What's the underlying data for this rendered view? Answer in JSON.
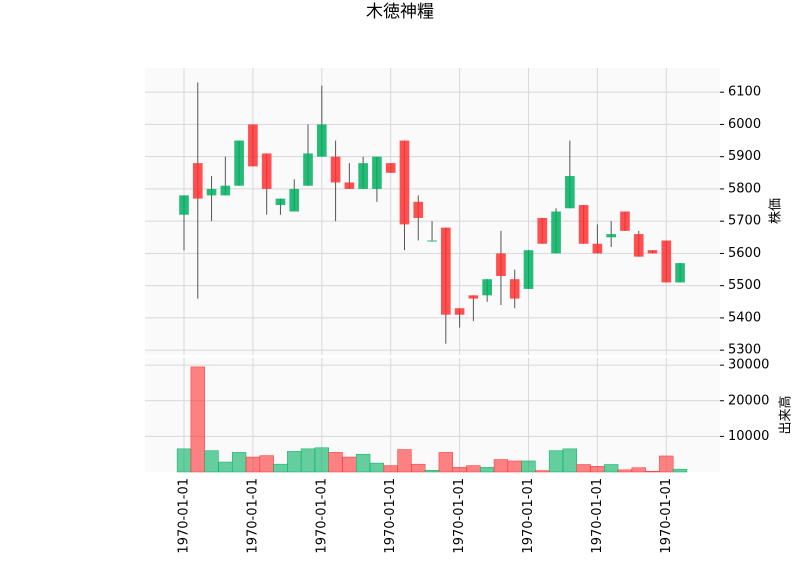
{
  "chart_data": {
    "type": "candlestick",
    "title": "木徳神糧",
    "x": [
      "1970-01-01",
      null,
      null,
      null,
      null,
      "1970-01-01",
      null,
      null,
      null,
      null,
      "1970-01-01",
      null,
      null,
      null,
      null,
      "1970-01-01",
      null,
      null,
      null,
      null,
      "1970-01-01",
      null,
      null,
      null,
      null,
      "1970-01-01",
      null,
      null,
      null,
      null,
      "1970-01-01",
      null,
      null,
      null,
      null,
      "1970-01-01",
      null
    ],
    "open": [
      5720,
      5880,
      5780,
      5780,
      5810,
      6000,
      5910,
      5750,
      5730,
      5810,
      5900,
      5900,
      5820,
      5800,
      5800,
      5880,
      5950,
      5760,
      5640,
      5680,
      5430,
      5470,
      5470,
      5600,
      5520,
      5490,
      5710,
      5600,
      5740,
      5750,
      5630,
      5650,
      5730,
      5660,
      5610,
      5640,
      5510
    ],
    "high": [
      5780,
      6130,
      5840,
      5900,
      5950,
      6000,
      5910,
      5770,
      5830,
      6000,
      6120,
      5950,
      5880,
      5900,
      5900,
      5880,
      5950,
      5780,
      5700,
      5680,
      5430,
      5470,
      5520,
      5670,
      5550,
      5610,
      5710,
      5740,
      5950,
      5750,
      5690,
      5700,
      5730,
      5670,
      5610,
      5640,
      5570
    ],
    "low": [
      5610,
      5460,
      5700,
      5780,
      5810,
      5870,
      5720,
      5720,
      5730,
      5810,
      5900,
      5700,
      5800,
      5800,
      5760,
      5850,
      5610,
      5640,
      5640,
      5320,
      5370,
      5390,
      5450,
      5440,
      5430,
      5490,
      5630,
      5600,
      5740,
      5630,
      5600,
      5620,
      5670,
      5590,
      5600,
      5510,
      5510
    ],
    "close": [
      5780,
      5770,
      5800,
      5810,
      5950,
      5870,
      5800,
      5770,
      5800,
      5910,
      6000,
      5820,
      5800,
      5880,
      5900,
      5850,
      5690,
      5710,
      5640,
      5410,
      5410,
      5460,
      5520,
      5530,
      5460,
      5610,
      5630,
      5730,
      5840,
      5630,
      5600,
      5660,
      5670,
      5590,
      5600,
      5510,
      5570
    ],
    "volume": [
      6500,
      29500,
      6000,
      2800,
      5500,
      4200,
      4600,
      2200,
      5800,
      6500,
      6800,
      5500,
      4200,
      5000,
      2500,
      1800,
      6300,
      2200,
      500,
      5500,
      1300,
      1800,
      1300,
      3500,
      3100,
      3100,
      400,
      6000,
      6500,
      2100,
      1600,
      2100,
      600,
      1200,
      200,
      4500,
      800
    ],
    "up_color": "#00b060",
    "down_color": "#fe3032",
    "ylabel": "株価",
    "ylim": [
      5285,
      6175
    ],
    "yticks": [
      5300,
      5400,
      5500,
      5600,
      5700,
      5800,
      5900,
      6000,
      6100
    ],
    "y2label": "出来高",
    "y2lim": [
      0,
      32000
    ],
    "y2ticks": [
      10000,
      20000,
      30000
    ],
    "grid": true
  }
}
